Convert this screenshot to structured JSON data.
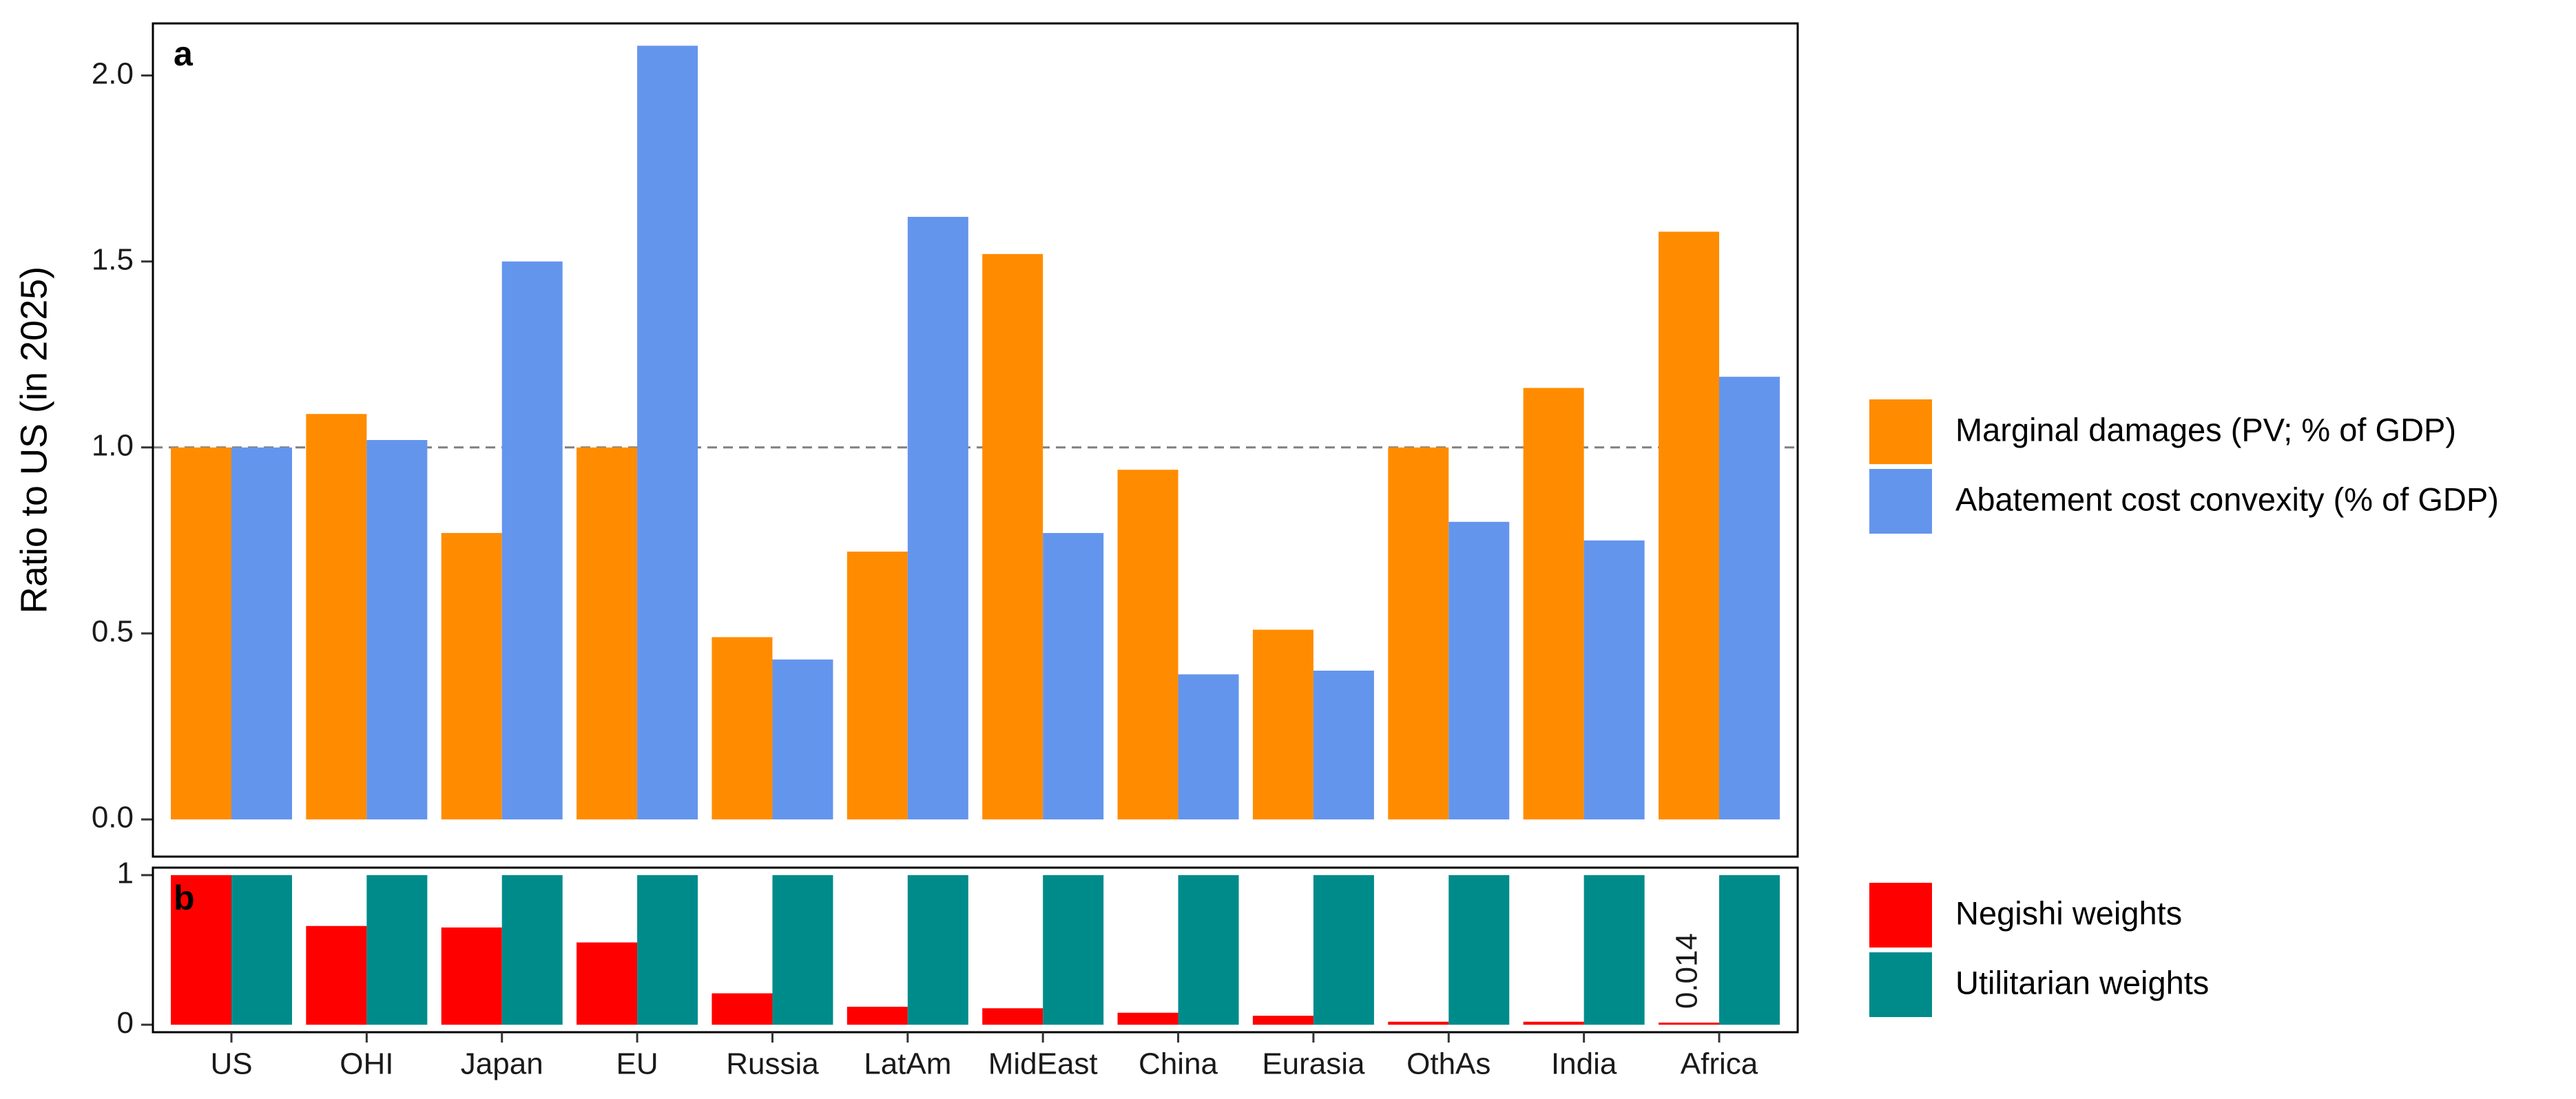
{
  "chart_data": [
    {
      "type": "bar",
      "panel_label": "a",
      "y_label": "Ratio to US (in 2025)",
      "ylim": [
        -0.1,
        2.14
      ],
      "yticks": [
        {
          "value": 0,
          "label": "0.0"
        },
        {
          "value": 0.5,
          "label": "0.5"
        },
        {
          "value": 1,
          "label": "1.0"
        },
        {
          "value": 1.5,
          "label": "1.5"
        },
        {
          "value": 2,
          "label": "2.0"
        }
      ],
      "hline": 1,
      "legend": "right",
      "series": [
        {
          "name": "Marginal damages (PV; % of GDP)",
          "color": "#ff8c00",
          "values": [
            1.0,
            1.09,
            0.77,
            1.0,
            0.49,
            0.72,
            1.52,
            0.94,
            0.51,
            1.0,
            1.16,
            1.58
          ]
        },
        {
          "name": "Abatement cost convexity (% of GDP)",
          "color": "#6495ed",
          "values": [
            1.0,
            1.02,
            1.5,
            2.08,
            0.43,
            1.62,
            0.77,
            0.39,
            0.4,
            0.8,
            0.75,
            1.19
          ]
        }
      ]
    },
    {
      "type": "bar",
      "panel_label": "b",
      "categories": [
        "US",
        "OHI",
        "Japan",
        "EU",
        "Russia",
        "LatAm",
        "MidEast",
        "China",
        "Eurasia",
        "OthAs",
        "India",
        "Africa"
      ],
      "ylim": [
        -0.05,
        1.05
      ],
      "yticks": [
        0,
        1
      ],
      "legend": "right",
      "series": [
        {
          "name": "Negishi weights",
          "color": "#ff0000",
          "values": [
            1.0,
            0.66,
            0.65,
            0.55,
            0.21,
            0.12,
            0.11,
            0.08,
            0.06,
            0.02,
            0.02,
            0.014
          ],
          "value_labels": [
            null,
            null,
            null,
            null,
            null,
            null,
            null,
            null,
            null,
            null,
            null,
            "0.014"
          ]
        },
        {
          "name": "Utilitarian weights",
          "color": "#008b8b",
          "values": [
            1,
            1,
            1,
            1,
            1,
            1,
            1,
            1,
            1,
            1,
            1,
            1
          ]
        }
      ]
    }
  ]
}
